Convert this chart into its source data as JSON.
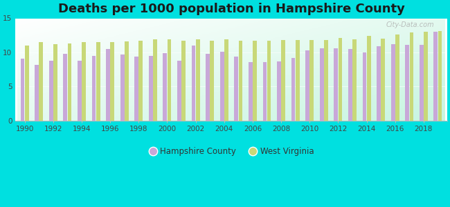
{
  "title": "Deaths per 1000 population in Hampshire County",
  "years": [
    1990,
    1991,
    1992,
    1993,
    1994,
    1995,
    1996,
    1997,
    1998,
    1999,
    2000,
    2001,
    2002,
    2003,
    2004,
    2005,
    2006,
    2007,
    2008,
    2009,
    2010,
    2011,
    2012,
    2013,
    2014,
    2015,
    2016,
    2017,
    2018,
    2019
  ],
  "hampshire": [
    9.1,
    8.2,
    8.8,
    9.8,
    8.8,
    9.5,
    10.5,
    9.7,
    9.4,
    9.5,
    9.9,
    8.8,
    11.0,
    9.8,
    10.1,
    9.4,
    8.6,
    8.6,
    8.7,
    9.2,
    10.3,
    10.6,
    10.6,
    10.5,
    10.0,
    10.9,
    11.2,
    11.1,
    11.1,
    13.0
  ],
  "west_virginia": [
    11.0,
    11.5,
    11.2,
    11.3,
    11.5,
    11.5,
    11.5,
    11.6,
    11.7,
    11.9,
    11.9,
    11.7,
    11.9,
    11.7,
    11.9,
    11.7,
    11.7,
    11.7,
    11.8,
    11.8,
    11.8,
    11.8,
    12.1,
    11.9,
    12.4,
    12.0,
    12.6,
    12.9,
    13.0,
    13.1
  ],
  "hampshire_color": "#c8a8d8",
  "west_virginia_color": "#c8d878",
  "background_color": "#00e0e0",
  "ylim": [
    0,
    15
  ],
  "yticks": [
    0,
    5,
    10,
    15
  ],
  "bar_width": 0.28,
  "title_fontsize": 13,
  "legend_label_hampshire": "Hampshire County",
  "legend_label_wv": "West Virginia"
}
